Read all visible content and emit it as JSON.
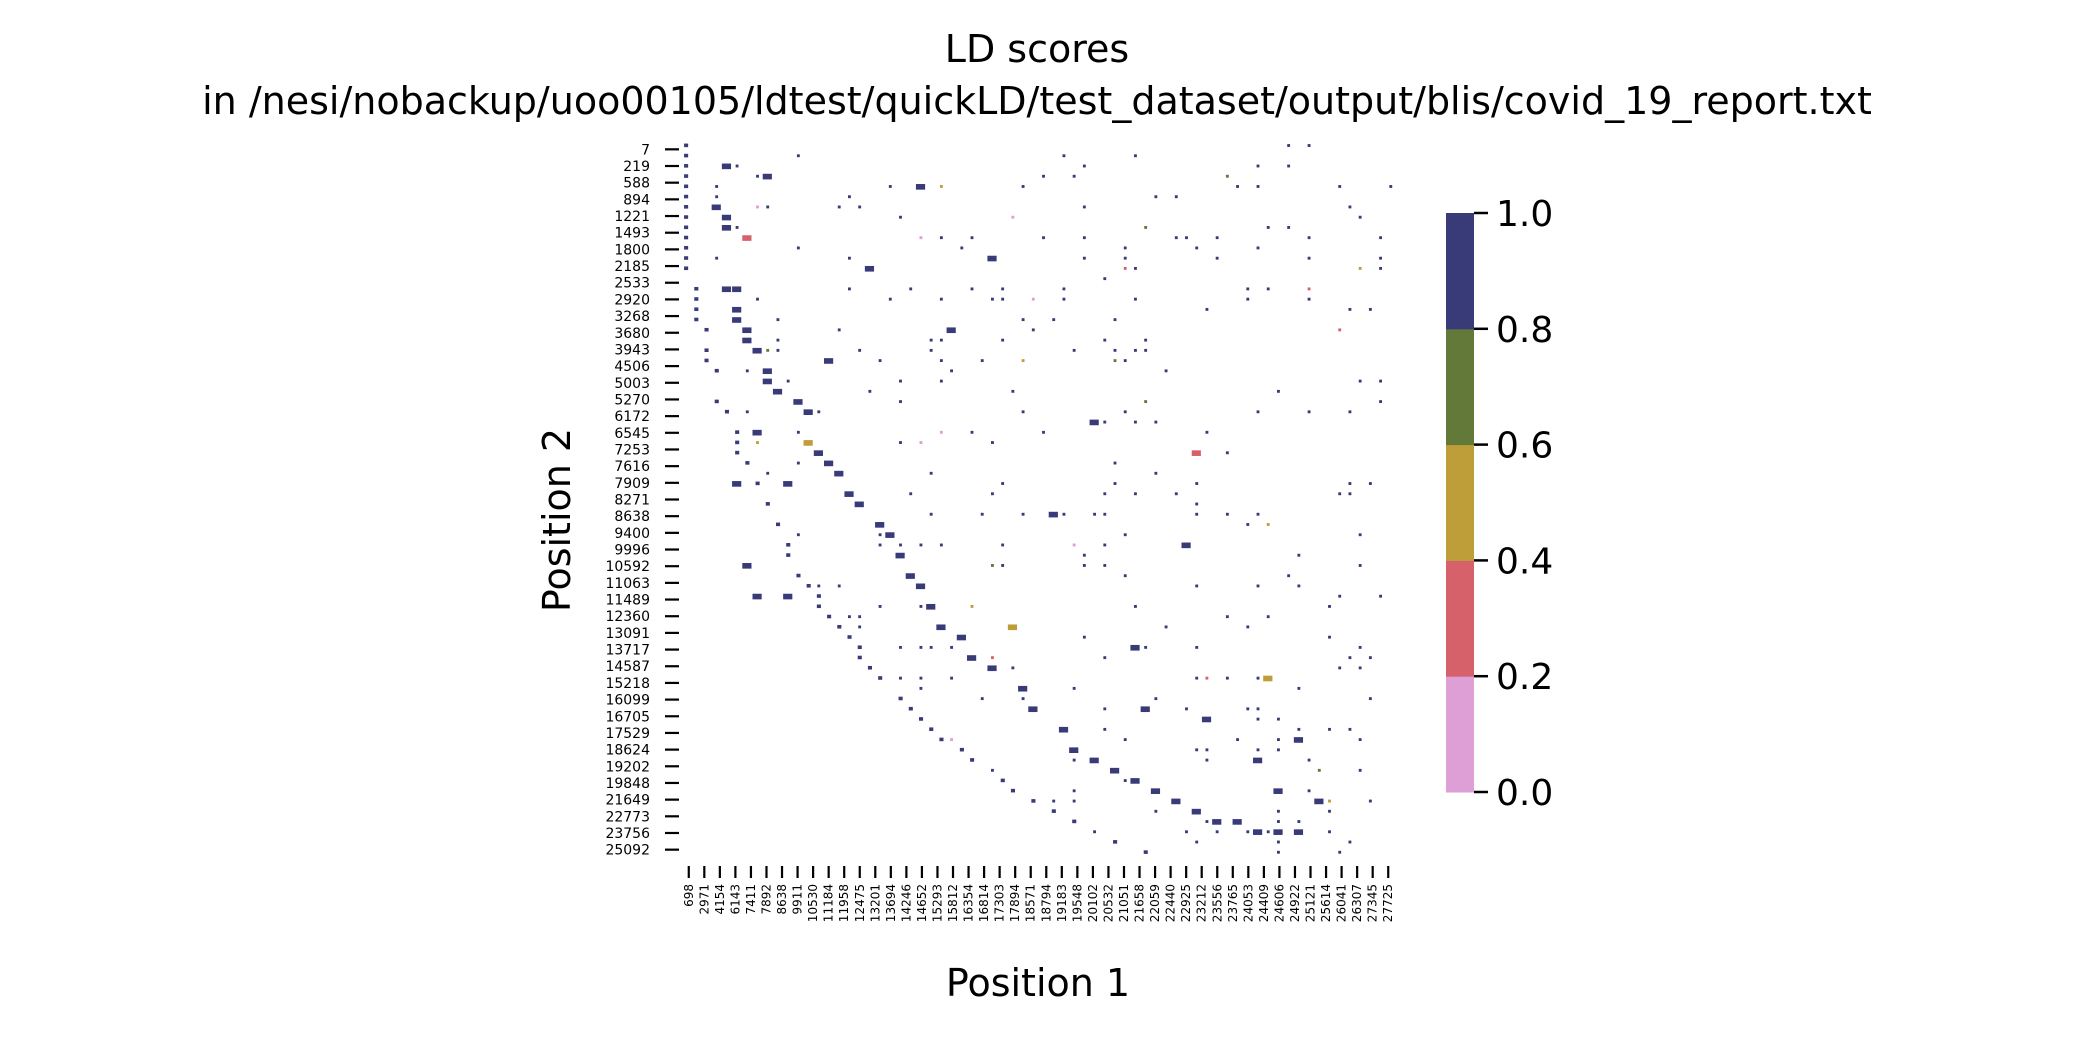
{
  "chart_data": {
    "type": "heatmap",
    "title": "LD scores",
    "subtitle": "in /nesi/nobackup/uoo00105/ldtest/quickLD/test_dataset/output/blis/covid_19_report.txt",
    "xlabel": "Position 1",
    "ylabel": "Position 2",
    "x_ticks": [
      "698",
      "2971",
      "4154",
      "6143",
      "7411",
      "7892",
      "8638",
      "9911",
      "10530",
      "11184",
      "11958",
      "12475",
      "13201",
      "13694",
      "14246",
      "14652",
      "15293",
      "15812",
      "16354",
      "16814",
      "17303",
      "17894",
      "18571",
      "18794",
      "19183",
      "19548",
      "20102",
      "20532",
      "21051",
      "21658",
      "22059",
      "22440",
      "22925",
      "23212",
      "23556",
      "23765",
      "24053",
      "24409",
      "24606",
      "24922",
      "25121",
      "25614",
      "26041",
      "26307",
      "27345",
      "27725"
    ],
    "y_ticks": [
      "7",
      "219",
      "588",
      "894",
      "1221",
      "1493",
      "1800",
      "2185",
      "2533",
      "2920",
      "3268",
      "3680",
      "3943",
      "4506",
      "5003",
      "5270",
      "6172",
      "6545",
      "7253",
      "7616",
      "7909",
      "8271",
      "8638",
      "9400",
      "9996",
      "10592",
      "11063",
      "11489",
      "12360",
      "13091",
      "13717",
      "14587",
      "15218",
      "16099",
      "16705",
      "17529",
      "18624",
      "19202",
      "19848",
      "21649",
      "22773",
      "23756",
      "25092"
    ],
    "colorbar": {
      "range": [
        0.0,
        1.0
      ],
      "ticks": [
        "0.0",
        "0.2",
        "0.4",
        "0.6",
        "0.8",
        "1.0"
      ],
      "colors": [
        "#de9ed6",
        "#d6616b",
        "#bd9e39",
        "#637939",
        "#393b79"
      ]
    },
    "cells_rc": [
      [
        2,
        4,
        0.95
      ],
      [
        7,
        4,
        0.95
      ],
      [
        8,
        4,
        0.9
      ],
      [
        16,
        5,
        0.98
      ],
      [
        17,
        5,
        0.95
      ],
      [
        18,
        6,
        0.97
      ],
      [
        19,
        6,
        0.95
      ],
      [
        20,
        7,
        0.93
      ],
      [
        23,
        8,
        0.92
      ],
      [
        24,
        9,
        0.95
      ],
      [
        25,
        11,
        0.92
      ],
      [
        26,
        12,
        0.96
      ],
      [
        30,
        13,
        0.95
      ],
      [
        31,
        14,
        0.94
      ],
      [
        32,
        15,
        0.95
      ],
      [
        34,
        16,
        0.93
      ],
      [
        35,
        17,
        0.96
      ],
      [
        37,
        19,
        0.94
      ],
      [
        38,
        20,
        0.95
      ],
      [
        40,
        21,
        0.97
      ],
      [
        42,
        22,
        0.93
      ],
      [
        43,
        23,
        0.92
      ],
      [
        45,
        24,
        0.95
      ],
      [
        47,
        25,
        0.96
      ],
      [
        48,
        27,
        0.94
      ],
      [
        50,
        28,
        0.95
      ],
      [
        51,
        30,
        0.95
      ],
      [
        53,
        33,
        0.96
      ],
      [
        55,
        34,
        0.92
      ],
      [
        57,
        37,
        0.95
      ],
      [
        59,
        38,
        0.94
      ],
      [
        60,
        40,
        0.96
      ],
      [
        61,
        42,
        0.95
      ],
      [
        62,
        44,
        0.93
      ],
      [
        63,
        46,
        0.95
      ],
      [
        64,
        48,
        0.96
      ],
      [
        65,
        50,
        0.95
      ],
      [
        66,
        52,
        0.94
      ],
      [
        66,
        54,
        0.97
      ],
      [
        67,
        56,
        0.95
      ],
      [
        67,
        58,
        0.93
      ],
      [
        67,
        60,
        0.95
      ],
      [
        63,
        58,
        0.95
      ],
      [
        22,
        8,
        0.92
      ],
      [
        14,
        4,
        0.9
      ],
      [
        14,
        5,
        0.95
      ],
      [
        3,
        8,
        0.95
      ],
      [
        33,
        5,
        0.95
      ],
      [
        41,
        6,
        0.95
      ],
      [
        44,
        7,
        0.9
      ],
      [
        44,
        10,
        0.95
      ],
      [
        6,
        3,
        0.95
      ],
      [
        9,
        6,
        0.35
      ],
      [
        29,
        12,
        0.45
      ],
      [
        47,
        32,
        0.5
      ],
      [
        52,
        57,
        0.55
      ],
      [
        30,
        50,
        0.35
      ],
      [
        28,
        7,
        0.95
      ],
      [
        33,
        10,
        0.9
      ],
      [
        55,
        45,
        0.92
      ],
      [
        60,
        56,
        0.95
      ],
      [
        21,
        14,
        0.92
      ],
      [
        27,
        40,
        0.9
      ],
      [
        49,
        44,
        0.95
      ],
      [
        12,
        18,
        0.93
      ],
      [
        4,
        23,
        0.9
      ],
      [
        11,
        30,
        0.95
      ],
      [
        36,
        36,
        0.93
      ],
      [
        18,
        26,
        0.9
      ],
      [
        39,
        49,
        0.95
      ],
      [
        58,
        60,
        0.92
      ],
      [
        56,
        51,
        0.95
      ],
      [
        64,
        62,
        0.95
      ]
    ]
  }
}
